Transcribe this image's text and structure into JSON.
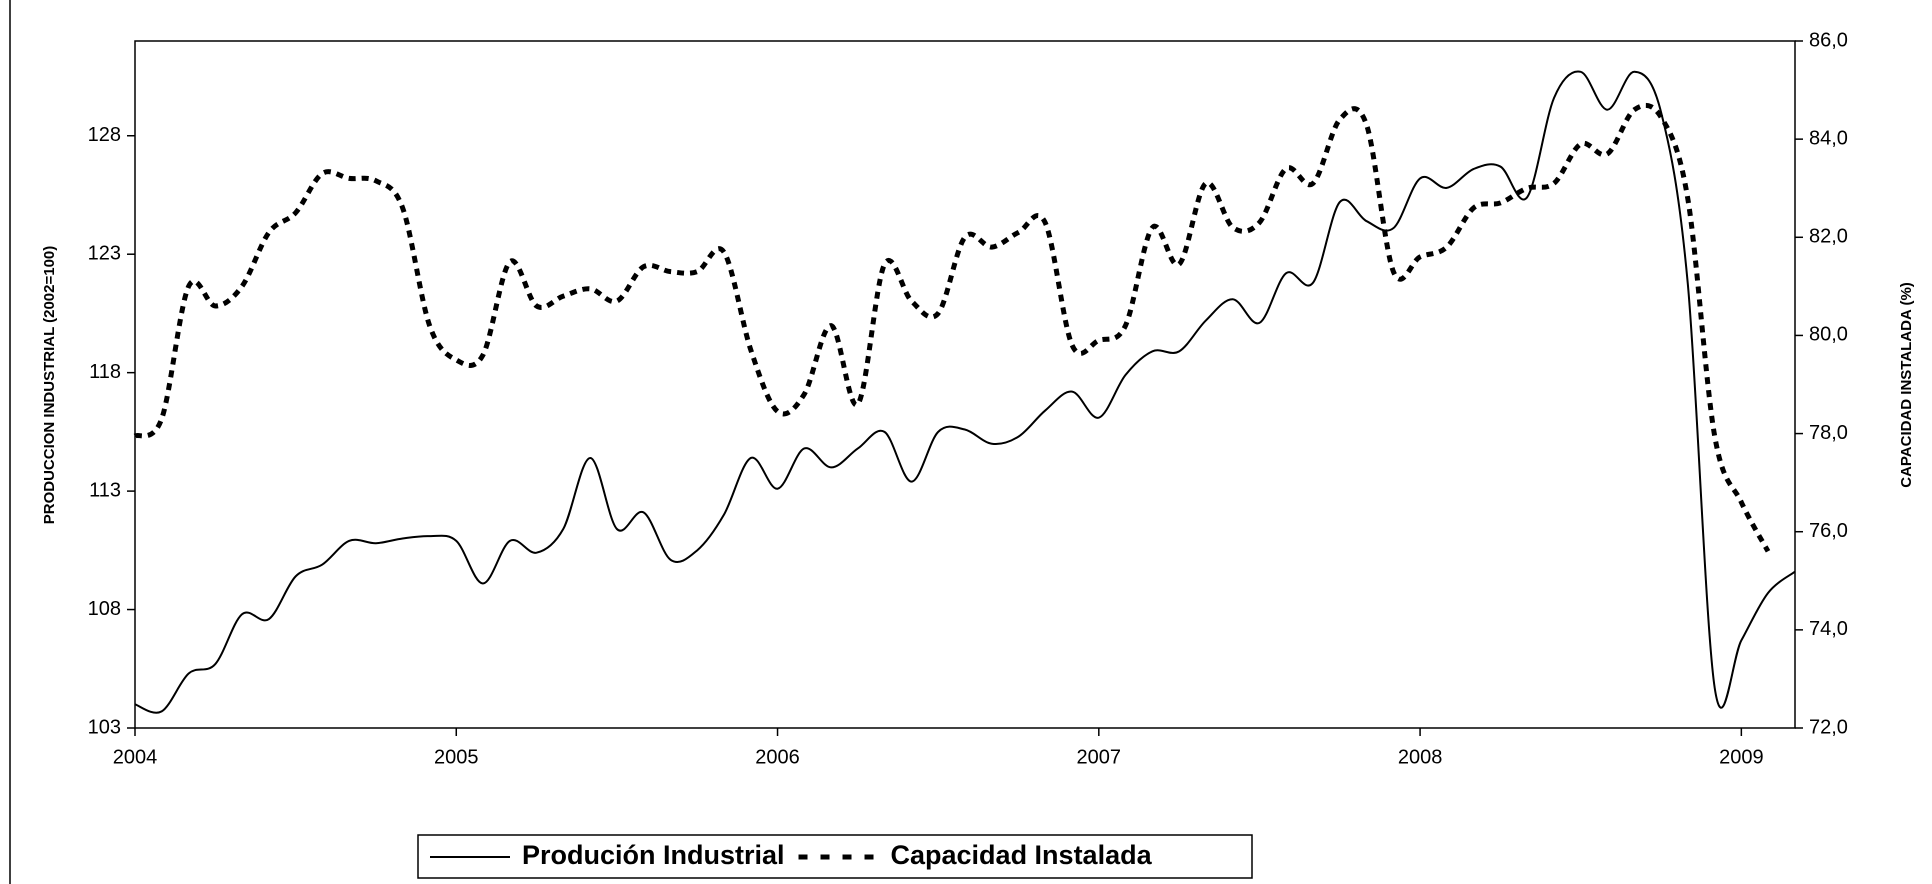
{
  "chart_data": {
    "type": "line",
    "y_label": "PRODUCCION INDUSTRIAL (2002=100)",
    "y2_label": "CAPACIDAD INSTALADA (%)",
    "x": [
      2004,
      2004.083,
      2004.167,
      2004.25,
      2004.333,
      2004.417,
      2004.5,
      2004.583,
      2004.667,
      2004.75,
      2004.833,
      2004.917,
      2005,
      2005.083,
      2005.167,
      2005.25,
      2005.333,
      2005.417,
      2005.5,
      2005.583,
      2005.667,
      2005.75,
      2005.833,
      2005.917,
      2006,
      2006.083,
      2006.167,
      2006.25,
      2006.333,
      2006.417,
      2006.5,
      2006.583,
      2006.667,
      2006.75,
      2006.833,
      2006.917,
      2007,
      2007.083,
      2007.167,
      2007.25,
      2007.333,
      2007.417,
      2007.5,
      2007.583,
      2007.667,
      2007.75,
      2007.833,
      2007.917,
      2008,
      2008.083,
      2008.167,
      2008.25,
      2008.333,
      2008.417,
      2008.5,
      2008.583,
      2008.667,
      2008.75,
      2008.833,
      2008.917,
      2009,
      2009.083,
      2009.167
    ],
    "series": [
      {
        "name": "Produción Industrial",
        "color": "#000000",
        "line_style": "solid",
        "axis": "y",
        "values": [
          104.0,
          103.7,
          105.3,
          105.7,
          107.8,
          107.6,
          109.4,
          109.9,
          110.9,
          110.8,
          111.0,
          111.1,
          110.9,
          109.1,
          110.9,
          110.4,
          111.4,
          114.4,
          111.4,
          112.1,
          110.1,
          110.5,
          112.0,
          114.4,
          113.1,
          114.8,
          114.0,
          114.8,
          115.5,
          113.4,
          115.5,
          115.6,
          115.0,
          115.3,
          116.4,
          117.2,
          116.1,
          117.9,
          118.9,
          118.9,
          120.2,
          121.1,
          120.1,
          122.2,
          121.8,
          125.2,
          124.4,
          124.1,
          126.2,
          125.8,
          126.6,
          126.7,
          125.4,
          129.6,
          130.7,
          129.1,
          130.7,
          129.0,
          121.8,
          104.7,
          106.7,
          108.7,
          109.6
        ]
      },
      {
        "name": "Capacidad Instalada",
        "color": "#000000",
        "line_style": "dashed",
        "axis": "y2",
        "values": [
          77.95,
          78.3,
          81.0,
          80.6,
          81.0,
          82.1,
          82.5,
          83.3,
          83.2,
          83.15,
          82.6,
          80.2,
          79.5,
          79.6,
          81.5,
          80.6,
          80.8,
          80.95,
          80.7,
          81.4,
          81.3,
          81.3,
          81.7,
          79.7,
          78.45,
          78.8,
          80.2,
          78.6,
          81.45,
          80.7,
          80.45,
          82.0,
          81.8,
          82.1,
          82.3,
          79.8,
          79.9,
          80.2,
          82.2,
          81.45,
          83.1,
          82.2,
          82.3,
          83.4,
          83.1,
          84.4,
          84.3,
          81.3,
          81.6,
          81.8,
          82.6,
          82.7,
          83.0,
          83.1,
          83.9,
          83.7,
          84.6,
          84.45,
          82.8,
          77.95,
          76.6,
          75.6,
          null
        ]
      }
    ],
    "xlim": [
      2004,
      2009.167
    ],
    "xticks": [
      2004,
      2005,
      2006,
      2007,
      2008,
      2009
    ],
    "ylim": [
      103,
      132
    ],
    "yticks": [
      103,
      108,
      113,
      118,
      123,
      128
    ],
    "y2lim": [
      72,
      86
    ],
    "y2ticks": [
      {
        "value": 72,
        "label": "72,0"
      },
      {
        "value": 74,
        "label": "74,0"
      },
      {
        "value": 76,
        "label": "76,0"
      },
      {
        "value": 78,
        "label": "78,0"
      },
      {
        "value": 80,
        "label": "80,0"
      },
      {
        "value": 82,
        "label": "82,0"
      },
      {
        "value": 84,
        "label": "84,0"
      },
      {
        "value": 86,
        "label": "86,0"
      }
    ],
    "grid": false,
    "legend": "bottom"
  }
}
